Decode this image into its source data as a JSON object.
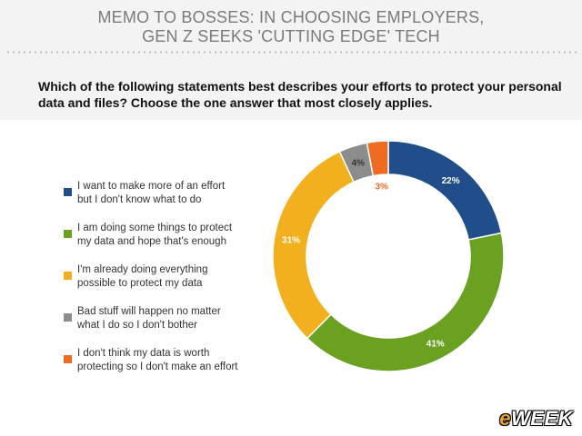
{
  "header": {
    "title_line1": "MEMO TO BOSSES: IN CHOOSING EMPLOYERS,",
    "title_line2": "GEN Z SEEKS 'CUTTING EDGE' TECH",
    "question": "Which of the following statements best describes your efforts to protect your personal data and files? Choose the one answer that most closely applies."
  },
  "brand": {
    "e": "e",
    "rest": "WEEK"
  },
  "colors": {
    "navy": "#1f4e8a",
    "green": "#6aa121",
    "yellow": "#f2b01e",
    "gray": "#8c8c8c",
    "orange": "#ef6b22"
  },
  "chart_data": {
    "type": "pie",
    "donut": true,
    "title": "",
    "legend_position": "left",
    "slices": [
      {
        "label": "I want to make more of an effort but I don't know what to do",
        "line1": "I want to make more of an effort",
        "line2": "but I don't know what to do",
        "value": 22,
        "display": "22%",
        "color": "#1f4e8a"
      },
      {
        "label": "I am doing some things to protect my data and hope that's enough",
        "line1": "I am doing some things to protect",
        "line2": "my data and hope that's enough",
        "value": 41,
        "display": "41%",
        "color": "#6aa121"
      },
      {
        "label": "I'm already doing everything possible to protect my data",
        "line1": "I'm already doing everything",
        "line2": "possible to protect my data",
        "value": 31,
        "display": "31%",
        "color": "#f2b01e"
      },
      {
        "label": "Bad stuff will happen no matter what I do so I don't bother",
        "line1": "Bad stuff will happen no matter",
        "line2": "what I do so I don't bother",
        "value": 4,
        "display": "4%",
        "color": "#8c8c8c"
      },
      {
        "label": "I don't think my data is worth protecting so I don't make an effort",
        "line1": "I don't think my data is worth",
        "line2": "protecting so I don't make an effort",
        "value": 3,
        "display": "3%",
        "color": "#ef6b22"
      }
    ]
  }
}
